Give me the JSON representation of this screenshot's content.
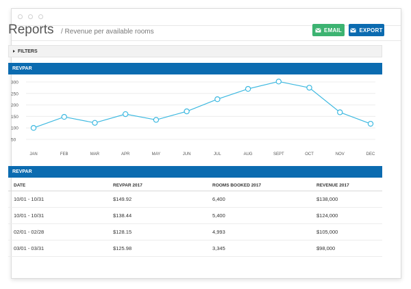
{
  "header": {
    "title": "Reports",
    "breadcrumb": "/ Revenue per available rooms"
  },
  "actions": {
    "email_label": "EMAIL",
    "export_label": "EXPORT"
  },
  "filters": {
    "label": "FILTERS"
  },
  "chart_section": {
    "label": "REVPAR"
  },
  "table_section": {
    "label": "REVPAR"
  },
  "colors": {
    "primary": "#0b6bb0",
    "email": "#3cb371",
    "line": "#3bb8e0"
  },
  "chart_data": {
    "type": "line",
    "categories": [
      "JAN",
      "FEB",
      "MAR",
      "APR",
      "MAY",
      "JUN",
      "JUL",
      "AUG",
      "SEPT",
      "OCT",
      "NOV",
      "DEC"
    ],
    "series": [
      {
        "values": [
          100,
          148,
          122,
          160,
          135,
          172,
          225,
          270,
          302,
          275,
          168,
          118
        ]
      }
    ],
    "yticks": [
      300,
      250,
      200,
      150,
      100,
      50
    ],
    "ylim": [
      50,
      300
    ],
    "grid": true
  },
  "table": {
    "headers": [
      "DATE",
      "REVPAR 2017",
      "ROOMS BOOKED 2017",
      "REVENUE 2017"
    ],
    "rows": [
      [
        "10/01 - 10/31",
        "$149.92",
        "6,400",
        "$138,000"
      ],
      [
        "10/01 - 10/31",
        "$138.44",
        "5,400",
        "$124,000"
      ],
      [
        "02/01 - 02/28",
        "$128.15",
        "4,993",
        "$105,000"
      ],
      [
        "03/01 - 03/31",
        "$125.98",
        "3,345",
        "$98,000"
      ]
    ]
  }
}
